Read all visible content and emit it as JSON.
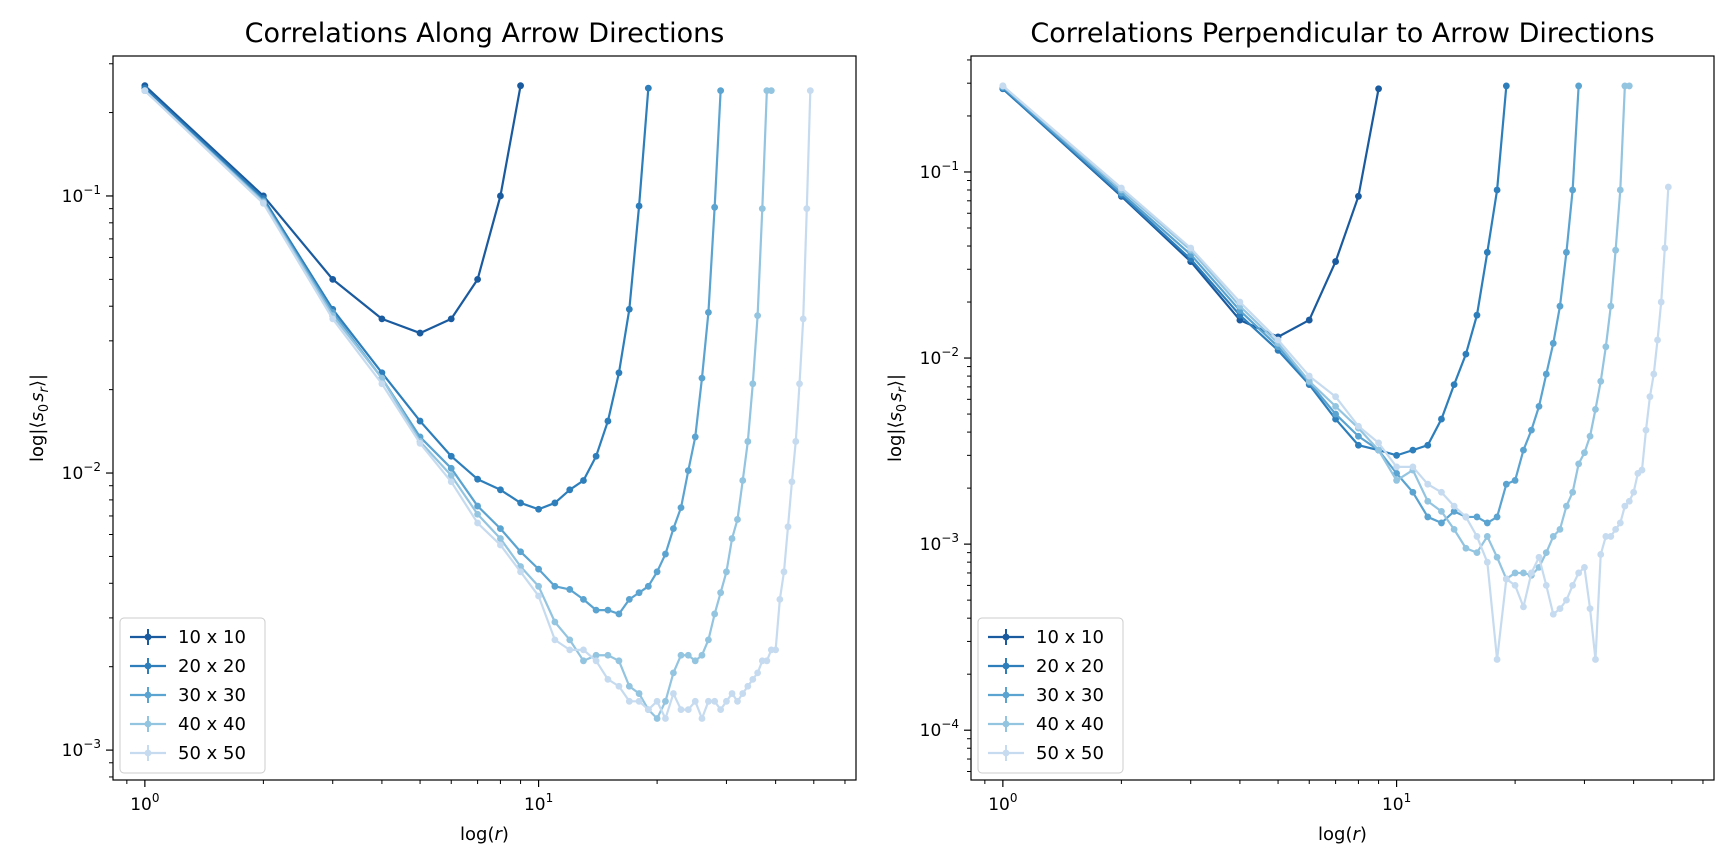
{
  "chart_data": [
    {
      "type": "line",
      "title": "Correlations Along Arrow Directions",
      "xlabel": "log(r)",
      "ylabel": "log|⟨s0 sr⟩|",
      "xscale": "log",
      "yscale": "log",
      "xlim": [
        0.83,
        64
      ],
      "ylim": [
        0.00078,
        0.32
      ],
      "x_ticks": [
        {
          "value": 1,
          "base": "10",
          "exp": "0"
        },
        {
          "value": 10,
          "base": "10",
          "exp": "1"
        }
      ],
      "y_ticks": [
        {
          "value": 0.001,
          "base": "10",
          "exp": "−3"
        },
        {
          "value": 0.01,
          "base": "10",
          "exp": "−2"
        },
        {
          "value": 0.1,
          "base": "10",
          "exp": "−1"
        }
      ],
      "legend": "lower-left",
      "series": [
        {
          "name": "10 x 10",
          "color": "#1a5a9e",
          "x": [
            1,
            2,
            3,
            4,
            5,
            6,
            7,
            8,
            9
          ],
          "y": [
            0.25,
            0.1,
            0.05,
            0.036,
            0.032,
            0.036,
            0.05,
            0.1,
            0.25
          ]
        },
        {
          "name": "20 x 20",
          "color": "#2d7ebb",
          "x": [
            1,
            2,
            3,
            4,
            5,
            6,
            7,
            8,
            9,
            10,
            11,
            12,
            13,
            14,
            15,
            16,
            17,
            18,
            19
          ],
          "y": [
            0.245,
            0.098,
            0.039,
            0.023,
            0.0154,
            0.0115,
            0.0095,
            0.0087,
            0.0078,
            0.0074,
            0.0078,
            0.0087,
            0.0094,
            0.0115,
            0.0154,
            0.023,
            0.039,
            0.092,
            0.245
          ]
        },
        {
          "name": "30 x 30",
          "color": "#5ba3d0",
          "x": [
            1,
            2,
            3,
            4,
            5,
            6,
            7,
            8,
            9,
            10,
            11,
            12,
            13,
            14,
            15,
            16,
            17,
            18,
            19,
            20,
            21,
            22,
            23,
            24,
            25,
            26,
            27,
            28,
            29
          ],
          "y": [
            0.24,
            0.096,
            0.038,
            0.022,
            0.0135,
            0.0104,
            0.0076,
            0.0063,
            0.0052,
            0.0045,
            0.0039,
            0.0038,
            0.0035,
            0.0032,
            0.0032,
            0.0031,
            0.0035,
            0.0037,
            0.0039,
            0.0044,
            0.0051,
            0.0063,
            0.0075,
            0.0102,
            0.0135,
            0.022,
            0.038,
            0.091,
            0.24
          ]
        },
        {
          "name": "40 x 40",
          "color": "#93c4e0",
          "x": [
            1,
            2,
            3,
            4,
            5,
            6,
            7,
            8,
            9,
            10,
            11,
            12,
            13,
            14,
            15,
            16,
            17,
            18,
            19,
            20,
            21,
            22,
            23,
            24,
            25,
            26,
            27,
            28,
            29,
            30,
            31,
            32,
            33,
            34,
            35,
            36,
            37,
            38,
            39
          ],
          "y": [
            0.24,
            0.095,
            0.037,
            0.022,
            0.013,
            0.0098,
            0.0071,
            0.0058,
            0.0046,
            0.0039,
            0.0029,
            0.0025,
            0.0021,
            0.0022,
            0.0022,
            0.0021,
            0.0017,
            0.0016,
            0.0014,
            0.0013,
            0.0015,
            0.0019,
            0.0022,
            0.0022,
            0.0021,
            0.0022,
            0.0025,
            0.0031,
            0.0037,
            0.0044,
            0.0058,
            0.0068,
            0.0094,
            0.013,
            0.021,
            0.037,
            0.09,
            0.24,
            0.24
          ]
        },
        {
          "name": "50 x 50",
          "color": "#c6dbef",
          "x": [
            1,
            2,
            3,
            4,
            5,
            6,
            7,
            8,
            9,
            10,
            11,
            12,
            13,
            14,
            15,
            16,
            17,
            18,
            19,
            20,
            21,
            22,
            23,
            24,
            25,
            26,
            27,
            28,
            29,
            30,
            31,
            32,
            33,
            34,
            35,
            36,
            37,
            38,
            39,
            40,
            41,
            42,
            43,
            44,
            45,
            46,
            47,
            48,
            49
          ],
          "y": [
            0.24,
            0.094,
            0.036,
            0.021,
            0.0128,
            0.0093,
            0.0066,
            0.0055,
            0.0044,
            0.0036,
            0.0025,
            0.0023,
            0.0023,
            0.0021,
            0.0018,
            0.0017,
            0.0015,
            0.0015,
            0.0014,
            0.0015,
            0.0013,
            0.0016,
            0.0014,
            0.0014,
            0.0015,
            0.0013,
            0.0015,
            0.0015,
            0.0014,
            0.0015,
            0.0016,
            0.0015,
            0.0016,
            0.0017,
            0.0018,
            0.0019,
            0.0021,
            0.0021,
            0.0023,
            0.0023,
            0.0035,
            0.0044,
            0.0064,
            0.0093,
            0.013,
            0.021,
            0.036,
            0.09,
            0.24
          ]
        }
      ]
    },
    {
      "type": "line",
      "title": "Correlations Perpendicular to Arrow Directions",
      "xlabel": "log(r)",
      "ylabel": "log|⟨s0 sr⟩|",
      "xscale": "log",
      "yscale": "log",
      "xlim": [
        0.83,
        64
      ],
      "ylim": [
        5.4e-05,
        0.42
      ],
      "x_ticks": [
        {
          "value": 1,
          "base": "10",
          "exp": "0"
        },
        {
          "value": 10,
          "base": "10",
          "exp": "1"
        }
      ],
      "y_ticks": [
        {
          "value": 0.0001,
          "base": "10",
          "exp": "−4"
        },
        {
          "value": 0.001,
          "base": "10",
          "exp": "−3"
        },
        {
          "value": 0.01,
          "base": "10",
          "exp": "−2"
        },
        {
          "value": 0.1,
          "base": "10",
          "exp": "−1"
        }
      ],
      "legend": "lower-left",
      "series": [
        {
          "name": "10 x 10",
          "color": "#1a5a9e",
          "x": [
            1,
            2,
            3,
            4,
            5,
            6,
            7,
            8,
            9
          ],
          "y": [
            0.28,
            0.074,
            0.033,
            0.016,
            0.013,
            0.016,
            0.033,
            0.074,
            0.28
          ]
        },
        {
          "name": "20 x 20",
          "color": "#2d7ebb",
          "x": [
            1,
            2,
            3,
            4,
            5,
            6,
            7,
            8,
            9,
            10,
            11,
            12,
            13,
            14,
            15,
            16,
            17,
            18,
            19
          ],
          "y": [
            0.28,
            0.075,
            0.034,
            0.017,
            0.011,
            0.0072,
            0.0047,
            0.0034,
            0.0032,
            0.003,
            0.0032,
            0.0034,
            0.0047,
            0.0072,
            0.0105,
            0.017,
            0.037,
            0.08,
            0.29
          ]
        },
        {
          "name": "30 x 30",
          "color": "#5ba3d0",
          "x": [
            1,
            2,
            3,
            4,
            5,
            6,
            7,
            8,
            9,
            10,
            11,
            12,
            13,
            14,
            15,
            16,
            17,
            18,
            19,
            20,
            21,
            22,
            23,
            24,
            25,
            26,
            27,
            28,
            29
          ],
          "y": [
            0.285,
            0.077,
            0.036,
            0.018,
            0.0115,
            0.0074,
            0.005,
            0.0038,
            0.0032,
            0.0024,
            0.0019,
            0.0014,
            0.0013,
            0.0015,
            0.0014,
            0.0014,
            0.0013,
            0.0014,
            0.0021,
            0.0022,
            0.0032,
            0.0041,
            0.0055,
            0.0082,
            0.012,
            0.019,
            0.037,
            0.08,
            0.29
          ]
        },
        {
          "name": "40 x 40",
          "color": "#93c4e0",
          "x": [
            1,
            2,
            3,
            4,
            5,
            6,
            7,
            8,
            9,
            10,
            11,
            12,
            13,
            14,
            15,
            16,
            17,
            18,
            19,
            20,
            21,
            22,
            23,
            24,
            25,
            26,
            27,
            28,
            29,
            30,
            31,
            32,
            33,
            34,
            35,
            36,
            37,
            38,
            39
          ],
          "y": [
            0.29,
            0.08,
            0.038,
            0.019,
            0.012,
            0.0075,
            0.0055,
            0.0042,
            0.0032,
            0.0022,
            0.0025,
            0.0017,
            0.0015,
            0.0012,
            0.00095,
            0.0009,
            0.0011,
            0.00085,
            0.00065,
            0.0007,
            0.0007,
            0.00068,
            0.00075,
            0.0009,
            0.0011,
            0.0012,
            0.0016,
            0.0019,
            0.0027,
            0.0031,
            0.0038,
            0.0053,
            0.0075,
            0.0115,
            0.019,
            0.038,
            0.08,
            0.29,
            0.29
          ]
        },
        {
          "name": "50 x 50",
          "color": "#c6dbef",
          "x": [
            1,
            2,
            3,
            4,
            5,
            6,
            7,
            8,
            9,
            10,
            11,
            12,
            13,
            14,
            15,
            16,
            17,
            18,
            19,
            20,
            21,
            22,
            23,
            24,
            25,
            26,
            27,
            28,
            29,
            30,
            31,
            32,
            33,
            34,
            35,
            36,
            37,
            38,
            39,
            40,
            41,
            42,
            43,
            44,
            45,
            46,
            47,
            48,
            49
          ],
          "y": [
            0.29,
            0.082,
            0.039,
            0.02,
            0.0125,
            0.008,
            0.0062,
            0.0043,
            0.0035,
            0.0026,
            0.0026,
            0.0021,
            0.0019,
            0.0016,
            0.0014,
            0.0011,
            0.0008,
            0.00024,
            0.00065,
            0.0006,
            0.00046,
            0.0007,
            0.00085,
            0.0006,
            0.00042,
            0.00045,
            0.0005,
            0.0006,
            0.0007,
            0.00075,
            0.00045,
            0.00024,
            0.00088,
            0.0011,
            0.0011,
            0.0012,
            0.0013,
            0.0016,
            0.0017,
            0.0019,
            0.0024,
            0.0025,
            0.0041,
            0.0062,
            0.0082,
            0.0125,
            0.02,
            0.039,
            0.083
          ]
        }
      ]
    }
  ]
}
